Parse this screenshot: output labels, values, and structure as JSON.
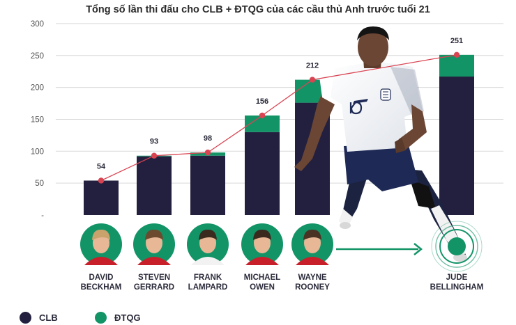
{
  "chart_data": {
    "type": "bar",
    "title": "Tổng số lần thi đấu cho CLB + ĐTQG của các cầu thủ Anh trước tuổi 21",
    "categories": [
      "DAVID BECKHAM",
      "STEVEN GERRARD",
      "FRANK LAMPARD",
      "MICHAEL OWEN",
      "WAYNE ROONEY",
      "JUDE BELLINGHAM"
    ],
    "category_lines": [
      [
        "DAVID",
        "BECKHAM"
      ],
      [
        "STEVEN",
        "GERRARD"
      ],
      [
        "FRANK",
        "LAMPARD"
      ],
      [
        "MICHAEL",
        "OWEN"
      ],
      [
        "WAYNE",
        "ROONEY"
      ],
      [
        "JUDE",
        "BELLINGHAM"
      ]
    ],
    "series": [
      {
        "name": "CLB",
        "values": [
          54,
          92,
          93,
          130,
          176,
          217
        ]
      },
      {
        "name": "ĐTQG",
        "values": [
          0,
          1,
          5,
          26,
          36,
          34
        ]
      }
    ],
    "totals": [
      54,
      93,
      98,
      156,
      212,
      251
    ],
    "ylim": [
      0,
      300
    ],
    "yticks": [
      0,
      50,
      100,
      150,
      200,
      250,
      300
    ],
    "ytick_labels": [
      "-",
      "50",
      "100",
      "150",
      "200",
      "250",
      "300"
    ],
    "grid": true,
    "legend_position": "bottom-left",
    "colors": {
      "clb": "#23203f",
      "dtqg": "#129467",
      "line": "#d94452",
      "avatar_bg": "#129467",
      "arrow": "#129467"
    }
  },
  "legend": [
    {
      "label": "CLB",
      "color": "#23203f"
    },
    {
      "label": "ĐTQG",
      "color": "#129467"
    }
  ]
}
